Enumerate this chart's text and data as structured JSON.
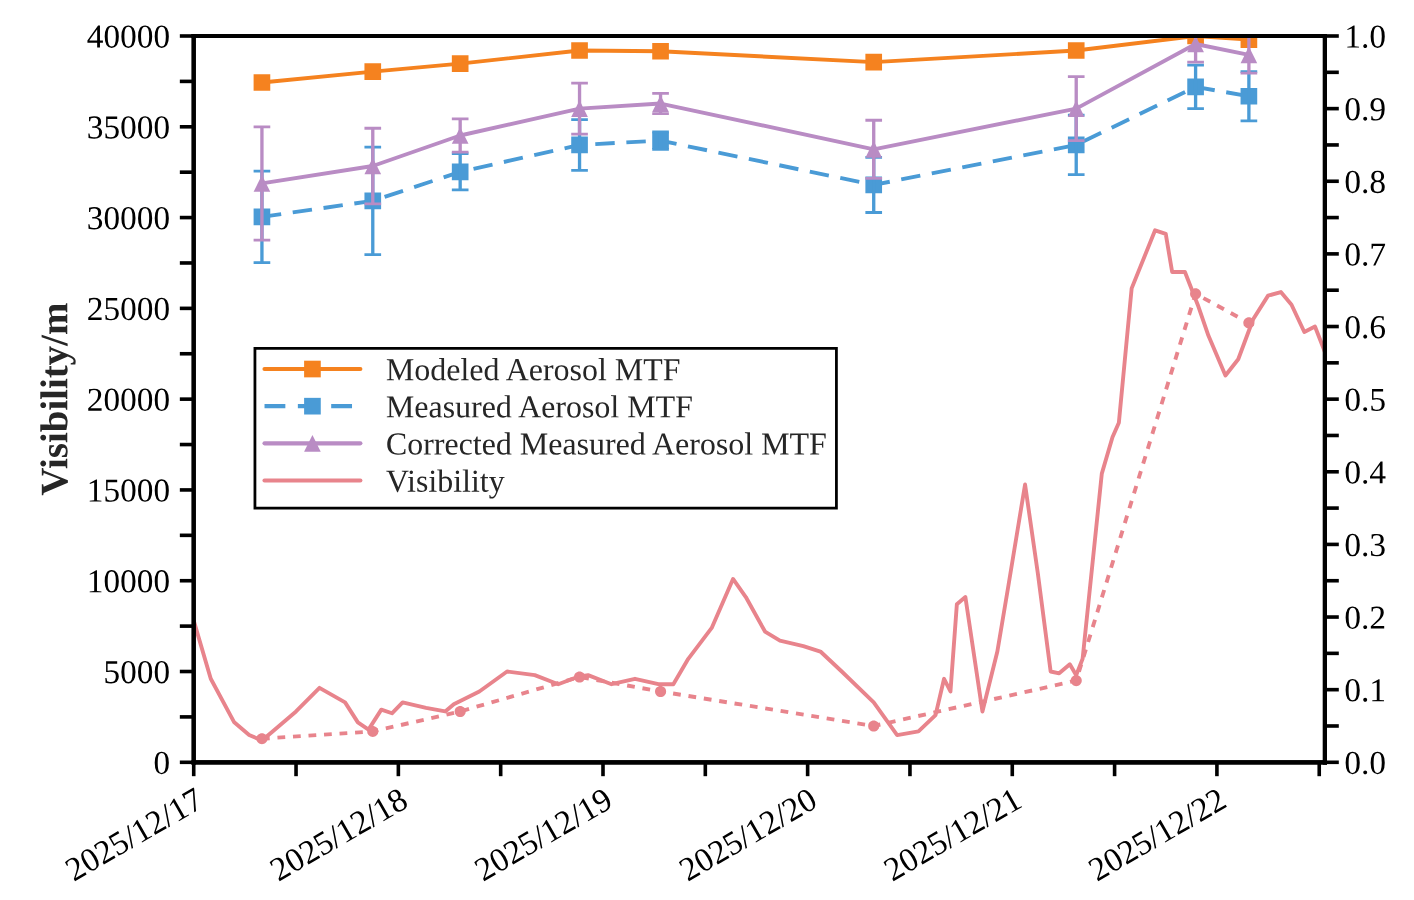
{
  "chart_data": {
    "type": "line",
    "ylabel": "Visibility/m",
    "xlim": [
      "2025-12-17T00:00",
      "2025-12-22T12:40"
    ],
    "xticks": [
      {
        "value": "2025-12-17",
        "label": "2025/12/17"
      },
      {
        "value": "2025-12-17T12:00",
        "label": null
      },
      {
        "value": "2025-12-18",
        "label": "2025/12/18"
      },
      {
        "value": "2025-12-18T12:00",
        "label": null
      },
      {
        "value": "2025-12-19",
        "label": "2025/12/19"
      },
      {
        "value": "2025-12-19T12:00",
        "label": null
      },
      {
        "value": "2025-12-20",
        "label": "2025/12/20"
      },
      {
        "value": "2025-12-20T12:00",
        "label": null
      },
      {
        "value": "2025-12-21",
        "label": "2025/12/21"
      },
      {
        "value": "2025-12-21T12:00",
        "label": null
      },
      {
        "value": "2025-12-22",
        "label": "2025/12/22"
      },
      {
        "value": "2025-12-22T12:00",
        "label": null
      }
    ],
    "ylim": [
      0,
      40000
    ],
    "yticks": [
      0,
      {
        "value": 2500,
        "label": null
      },
      5000,
      {
        "value": 7500,
        "label": null
      },
      10000,
      {
        "value": 12500,
        "label": null
      },
      15000,
      {
        "value": 17500,
        "label": null
      },
      20000,
      {
        "value": 22500,
        "label": null
      },
      25000,
      {
        "value": 27500,
        "label": null
      },
      30000,
      {
        "value": 32500,
        "label": null
      },
      35000,
      {
        "value": 37500,
        "label": null
      },
      40000
    ],
    "y2lim": [
      0,
      1.0
    ],
    "y2ticks": [
      {
        "value": 0,
        "label": "0.0"
      },
      {
        "value": 0.05,
        "label": null
      },
      0.1,
      {
        "value": 0.15,
        "label": null
      },
      0.2,
      {
        "value": 0.25,
        "label": null
      },
      0.3,
      {
        "value": 0.35,
        "label": null
      },
      0.4,
      {
        "value": 0.45,
        "label": null
      },
      0.5,
      {
        "value": 0.55,
        "label": null
      },
      0.6,
      {
        "value": 0.65,
        "label": null
      },
      0.7,
      {
        "value": 0.75,
        "label": null
      },
      0.8,
      {
        "value": 0.85,
        "label": null
      },
      0.9,
      {
        "value": 0.95,
        "label": null
      },
      {
        "value": 1.0,
        "label": "1.0"
      }
    ],
    "legend": "left",
    "grid": false,
    "series": [
      {
        "name": "Modeled Aerosol MTF",
        "color": "#f5821f",
        "axis": "y2",
        "marker": "square",
        "line_style": "solid",
        "x": [
          "2025-12-17T08:00",
          "2025-12-17T21:00",
          "2025-12-18T07:15",
          "2025-12-18T21:15",
          "2025-12-19T06:45",
          "2025-12-20T07:45",
          "2025-12-21T07:30",
          "2025-12-21T21:30",
          "2025-12-22T03:45"
        ],
        "values": [
          0.936,
          0.951,
          0.962,
          0.98,
          0.979,
          0.964,
          0.98,
          1.0,
          0.995
        ]
      },
      {
        "name": "Measured Aerosol MTF",
        "color": "#4a9bd6",
        "axis": "y2",
        "marker": "square",
        "line_style": "dashed",
        "x": [
          "2025-12-17T08:00",
          "2025-12-17T21:00",
          "2025-12-18T07:15",
          "2025-12-18T21:15",
          "2025-12-19T06:45",
          "2025-12-20T07:45",
          "2025-12-21T07:30",
          "2025-12-21T21:30",
          "2025-12-22T03:45"
        ],
        "values": [
          0.751,
          0.773,
          0.813,
          0.85,
          0.856,
          0.795,
          0.85,
          0.93,
          0.917
        ],
        "errors": [
          0.063,
          0.074,
          0.025,
          0.035,
          0.012,
          0.038,
          0.041,
          0.03,
          0.034
        ]
      },
      {
        "name": "Corrected Measured Aerosol MTF",
        "color": "#b98cc4",
        "axis": "y2",
        "marker": "triangle",
        "line_style": "solid",
        "x": [
          "2025-12-17T08:00",
          "2025-12-17T21:00",
          "2025-12-18T07:15",
          "2025-12-18T21:15",
          "2025-12-19T06:45",
          "2025-12-20T07:45",
          "2025-12-21T07:30",
          "2025-12-21T21:30",
          "2025-12-22T03:45"
        ],
        "values": [
          0.797,
          0.821,
          0.863,
          0.9,
          0.907,
          0.844,
          0.9,
          0.989,
          0.974
        ],
        "errors": [
          0.078,
          0.052,
          0.023,
          0.035,
          0.014,
          0.04,
          0.044,
          0.025,
          0.025
        ]
      },
      {
        "name": "Visibility",
        "color": "#e8848c",
        "axis": "y",
        "marker": "none",
        "line_style": "solid",
        "x": [
          "2025-12-17T00:00",
          "2025-12-17T02:00",
          "2025-12-17T04:45",
          "2025-12-17T06:30",
          "2025-12-17T08:00",
          "2025-12-17T09:15",
          "2025-12-17T12:00",
          "2025-12-17T14:45",
          "2025-12-17T17:45",
          "2025-12-17T19:15",
          "2025-12-17T20:30",
          "2025-12-17T22:00",
          "2025-12-17T23:15",
          "2025-12-18T00:30",
          "2025-12-18T03:15",
          "2025-12-18T05:30",
          "2025-12-18T06:30",
          "2025-12-18T09:30",
          "2025-12-18T12:45",
          "2025-12-18T16:00",
          "2025-12-18T18:45",
          "2025-12-18T21:00",
          "2025-12-18T22:15",
          "2025-12-19T01:00",
          "2025-12-19T03:45",
          "2025-12-19T06:30",
          "2025-12-19T08:15",
          "2025-12-19T10:00",
          "2025-12-19T12:45",
          "2025-12-19T15:15",
          "2025-12-19T16:45",
          "2025-12-19T19:00",
          "2025-12-19T20:45",
          "2025-12-19T23:30",
          "2025-12-20T01:30",
          "2025-12-20T04:00",
          "2025-12-20T07:45",
          "2025-12-20T10:30",
          "2025-12-20T13:00",
          "2025-12-20T15:00",
          "2025-12-20T16:00",
          "2025-12-20T16:45",
          "2025-12-20T17:30",
          "2025-12-20T18:30",
          "2025-12-20T20:30",
          "2025-12-20T22:15",
          "2025-12-20T23:30",
          "2025-12-21T01:30",
          "2025-12-21T03:00",
          "2025-12-21T04:30",
          "2025-12-21T05:30",
          "2025-12-21T06:45",
          "2025-12-21T07:30",
          "2025-12-21T08:15",
          "2025-12-21T10:30",
          "2025-12-21T11:45",
          "2025-12-21T12:30",
          "2025-12-21T14:00",
          "2025-12-21T16:45",
          "2025-12-21T18:00",
          "2025-12-21T18:45",
          "2025-12-21T20:15",
          "2025-12-21T21:45",
          "2025-12-21T23:00",
          "2025-12-22T01:00",
          "2025-12-22T02:30",
          "2025-12-22T04:15",
          "2025-12-22T06:00",
          "2025-12-22T07:30",
          "2025-12-22T08:45",
          "2025-12-22T10:15",
          "2025-12-22T11:30",
          "2025-12-22T12:40"
        ],
        "values": [
          7800,
          4600,
          2200,
          1500,
          1200,
          1700,
          2800,
          4100,
          3300,
          2200,
          1800,
          2900,
          2700,
          3300,
          3000,
          2800,
          3200,
          3900,
          5000,
          4800,
          4300,
          4700,
          4800,
          4300,
          4600,
          4300,
          4300,
          5700,
          7400,
          10100,
          9100,
          7200,
          6700,
          6400,
          6100,
          5000,
          3300,
          1500,
          1700,
          2600,
          4600,
          3900,
          8700,
          9100,
          2800,
          6100,
          9600,
          15300,
          10400,
          5000,
          4900,
          5400,
          4800,
          5700,
          15900,
          17900,
          18700,
          26100,
          29300,
          29100,
          27000,
          27000,
          25200,
          23500,
          21300,
          22200,
          24400,
          25700,
          25900,
          25200,
          23700,
          24000,
          22600
        ]
      },
      {
        "color": "#e8848c",
        "axis": "y",
        "marker": "circle",
        "line_style": "dotted",
        "x": [
          "2025-12-17T08:00",
          "2025-12-17T21:00",
          "2025-12-18T07:15",
          "2025-12-18T21:15",
          "2025-12-19T06:45",
          "2025-12-20T07:45",
          "2025-12-21T07:30",
          "2025-12-21T21:30",
          "2025-12-22T03:45"
        ],
        "values": [
          1300,
          1700,
          2800,
          4700,
          3900,
          2000,
          4500,
          25800,
          24200
        ]
      }
    ]
  }
}
